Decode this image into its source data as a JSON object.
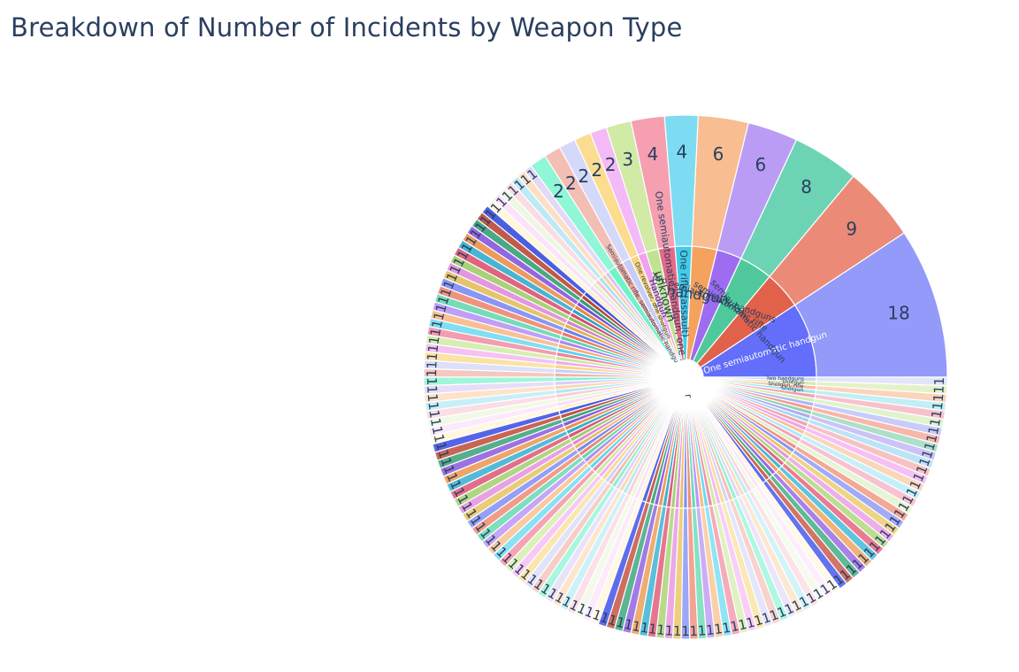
{
  "chart_data": {
    "type": "sunburst",
    "title": "Breakdown of Number of Incidents by Weapon Type",
    "segments": [
      {
        "label": "One semiautomatic handgun",
        "value": 18,
        "color": "#636efa",
        "outer": "#939af9"
      },
      {
        "label": "semiautomatic handgun",
        "value": 9,
        "color": "#e1614a",
        "outer": "#eb8b77"
      },
      {
        "label": "semiautomatic rifle",
        "value": 8,
        "color": "#4fc99b",
        "outer": "#6cd4b4"
      },
      {
        "label": "Two semiautomatic handguns",
        "value": 6,
        "color": "#9d6cf0",
        "outer": "#bb9cf5"
      },
      {
        "label": "handgun",
        "value": 6,
        "color": "#f6a25f",
        "outer": "#f8bd90"
      },
      {
        "label": "One rifle (assault)",
        "value": 4,
        "color": "#43cbe7",
        "outer": "#7ddcf1"
      },
      {
        "label": "One semiautomatic handgun, one revolver",
        "value": 4,
        "color": "#e46a86",
        "outer": "#f59fb1"
      },
      {
        "label": "unknown",
        "value": 3,
        "color": "#bfe38f",
        "outer": "#d1eaa6"
      },
      {
        "label": "Handgun",
        "value": 2,
        "color": "#f4a0f0",
        "outer": "#f4baf7"
      },
      {
        "label": "One revolver, one shotgun",
        "value": 2,
        "color": "#fad37a",
        "outer": "#fbdc91"
      },
      {
        "label": "",
        "value": 2,
        "color": "#c5cdf8",
        "outer": "#d4d9fa"
      },
      {
        "label": "Semiautomatic rifle, semiautomatic handgun",
        "value": 2,
        "color": "#eba89c",
        "outer": "#f3beb4"
      },
      {
        "label": "",
        "value": 2,
        "color": "#6ef4c8",
        "outer": "#8ff6d6"
      },
      {
        "label": "",
        "value": 1,
        "color": "#d6c6f4",
        "outer": "#e4d8f7"
      },
      {
        "label": "",
        "value": 1,
        "color": "#fbcfa4",
        "outer": "#fde0c4"
      },
      {
        "label": "",
        "value": 1,
        "color": "#a6e3f0",
        "outer": "#bdeaf5"
      },
      {
        "label": "",
        "value": 1,
        "color": "#f6c6d2",
        "outer": "#fbdce3"
      },
      {
        "label": "",
        "value": 1,
        "color": "#e4f2d0",
        "outer": "#eef7e3"
      },
      {
        "label": "",
        "value": 1,
        "color": "#f9d6f8",
        "outer": "#fbe4fa"
      },
      {
        "label": "",
        "value": 1,
        "color": "#fdf0c8",
        "outer": "#fef6dd"
      },
      {
        "label": "",
        "value": 1,
        "color": "#3f53d9",
        "outer": "#4a5fe0"
      },
      {
        "label": "",
        "value": 1,
        "color": "#b7483a",
        "outer": "#c05a4b"
      },
      {
        "label": "",
        "value": 1,
        "color": "#379a73",
        "outer": "#4aa884"
      },
      {
        "label": "",
        "value": 1,
        "color": "#7e4ed8",
        "outer": "#9266e0"
      },
      {
        "label": "",
        "value": 1,
        "color": "#e18a45",
        "outer": "#eb9c5d"
      },
      {
        "label": "",
        "value": 1,
        "color": "#2ea4c5",
        "outer": "#48b4d3"
      },
      {
        "label": "",
        "value": 1,
        "color": "#d44c6c",
        "outer": "#e06380"
      },
      {
        "label": "",
        "value": 1,
        "color": "#95c462",
        "outer": "#a8d179"
      },
      {
        "label": "",
        "value": 1,
        "color": "#d67fd2",
        "outer": "#e397e0"
      },
      {
        "label": "",
        "value": 1,
        "color": "#dcb452",
        "outer": "#e6c46c"
      },
      {
        "label": "",
        "value": 1,
        "color": "#6f7ef2",
        "outer": "#8a96f5"
      },
      {
        "label": "",
        "value": 1,
        "color": "#e87a62",
        "outer": "#ef937f"
      },
      {
        "label": "",
        "value": 1,
        "color": "#58d4a9",
        "outer": "#74dcb8"
      },
      {
        "label": "",
        "value": 1,
        "color": "#ab84f3",
        "outer": "#bf9ff6"
      },
      {
        "label": "",
        "value": 1,
        "color": "#f7ad73",
        "outer": "#f9c095"
      },
      {
        "label": "",
        "value": 1,
        "color": "#59d3ee",
        "outer": "#7fdff3"
      },
      {
        "label": "",
        "value": 1,
        "color": "#ee7f98",
        "outer": "#f49cb0"
      },
      {
        "label": "",
        "value": 1,
        "color": "#c8e79a",
        "outer": "#d7eeb2"
      },
      {
        "label": "",
        "value": 1,
        "color": "#f2a9ef",
        "outer": "#f6c2f4"
      },
      {
        "label": "",
        "value": 1,
        "color": "#f8d684",
        "outer": "#fbe3a6"
      },
      {
        "label": "",
        "value": 1,
        "color": "#c9d0f9",
        "outer": "#dce0fb"
      },
      {
        "label": "",
        "value": 1,
        "color": "#f0b3a7",
        "outer": "#f5c8bf"
      },
      {
        "label": "",
        "value": 1,
        "color": "#7df2cd",
        "outer": "#9ff6da"
      },
      {
        "label": "",
        "value": 1,
        "color": "#dcccf6",
        "outer": "#e7ddf9"
      },
      {
        "label": "",
        "value": 1,
        "color": "#fcd6b0",
        "outer": "#fde3c9"
      },
      {
        "label": "",
        "value": 1,
        "color": "#b1e7f3",
        "outer": "#c8eff7"
      },
      {
        "label": "",
        "value": 1,
        "color": "#f8ccd7",
        "outer": "#fbdde5"
      },
      {
        "label": "",
        "value": 1,
        "color": "#e9f5d7",
        "outer": "#f1f9e6"
      },
      {
        "label": "",
        "value": 1,
        "color": "#fbdcfa",
        "outer": "#fde8fc"
      },
      {
        "label": "",
        "value": 1,
        "color": "#fdf2d0",
        "outer": "#fef7e2"
      },
      {
        "label": "",
        "value": 1,
        "color": "#4a5de0",
        "outer": "#5565e8"
      },
      {
        "label": "",
        "value": 1,
        "color": "#c15545",
        "outer": "#c86555"
      },
      {
        "label": "",
        "value": 1,
        "color": "#3fa47c",
        "outer": "#55af8c"
      },
      {
        "label": "",
        "value": 1,
        "color": "#8a5ade",
        "outer": "#9b72e4"
      },
      {
        "label": "",
        "value": 1,
        "color": "#e8944f",
        "outer": "#eda669"
      },
      {
        "label": "",
        "value": 1,
        "color": "#37adcc",
        "outer": "#52bbd8"
      },
      {
        "label": "",
        "value": 1,
        "color": "#da5777",
        "outer": "#e46e88"
      },
      {
        "label": "",
        "value": 1,
        "color": "#a0cc6d",
        "outer": "#b1d683"
      },
      {
        "label": "",
        "value": 1,
        "color": "#dc8ad9",
        "outer": "#e8a1e5"
      },
      {
        "label": "",
        "value": 1,
        "color": "#e2bd5e",
        "outer": "#eacc78"
      },
      {
        "label": "",
        "value": 1,
        "color": "#7987f3",
        "outer": "#93a0f6"
      },
      {
        "label": "",
        "value": 1,
        "color": "#ec8570",
        "outer": "#f19c89"
      },
      {
        "label": "",
        "value": 1,
        "color": "#62d9b0",
        "outer": "#7ddfbd"
      },
      {
        "label": "",
        "value": 1,
        "color": "#b38df4",
        "outer": "#c5a6f7"
      },
      {
        "label": "",
        "value": 1,
        "color": "#f8b47d",
        "outer": "#facb9f"
      },
      {
        "label": "",
        "value": 1,
        "color": "#63d7ef",
        "outer": "#88e2f4"
      },
      {
        "label": "",
        "value": 1,
        "color": "#f088a0",
        "outer": "#f5a4b6"
      },
      {
        "label": "",
        "value": 1,
        "color": "#cde9a3",
        "outer": "#dcf0ba"
      },
      {
        "label": "",
        "value": 1,
        "color": "#f4b1f1",
        "outer": "#f8c8f6"
      },
      {
        "label": "",
        "value": 1,
        "color": "#f9da8e",
        "outer": "#fbe6ad"
      },
      {
        "label": "",
        "value": 1,
        "color": "#cdd3f9",
        "outer": "#e0e3fb"
      },
      {
        "label": "",
        "value": 1,
        "color": "#f2bbb0",
        "outer": "#f7cec6"
      },
      {
        "label": "",
        "value": 1,
        "color": "#88f3d1",
        "outer": "#a8f7de"
      },
      {
        "label": "",
        "value": 1,
        "color": "#e0d2f7",
        "outer": "#eae2fa"
      },
      {
        "label": "",
        "value": 1,
        "color": "#fcdab7",
        "outer": "#fde6ce"
      },
      {
        "label": "",
        "value": 1,
        "color": "#b9eaf4",
        "outer": "#cdf1f8"
      },
      {
        "label": "",
        "value": 1,
        "color": "#f9d1db",
        "outer": "#fce0e7"
      },
      {
        "label": "",
        "value": 1,
        "color": "#edf7de",
        "outer": "#f3faea"
      },
      {
        "label": "",
        "value": 1,
        "color": "#fce0fb",
        "outer": "#fdebfd"
      },
      {
        "label": "",
        "value": 1,
        "color": "#fef4d6",
        "outer": "#fef8e5"
      },
      {
        "label": "",
        "value": 1,
        "color": "#5365e4",
        "outer": "#5d6dec"
      },
      {
        "label": "",
        "value": 1,
        "color": "#c65e4e",
        "outer": "#cd6e5f"
      },
      {
        "label": "",
        "value": 1,
        "color": "#46aa82",
        "outer": "#5bb592"
      },
      {
        "label": "",
        "value": 1,
        "color": "#9163e1",
        "outer": "#a37ae7"
      },
      {
        "label": "",
        "value": 1,
        "color": "#eb9b57",
        "outer": "#efad72"
      },
      {
        "label": "",
        "value": 1,
        "color": "#3eb3d1",
        "outer": "#59c0dc"
      },
      {
        "label": "",
        "value": 1,
        "color": "#de5f7e",
        "outer": "#e7758e"
      },
      {
        "label": "",
        "value": 1,
        "color": "#a6d176",
        "outer": "#b7da8b"
      },
      {
        "label": "",
        "value": 1,
        "color": "#e092dc",
        "outer": "#eba8e8"
      },
      {
        "label": "",
        "value": 1,
        "color": "#e5c266",
        "outer": "#ecd080"
      },
      {
        "label": "",
        "value": 1,
        "color": "#8290f4",
        "outer": "#9ba7f7"
      },
      {
        "label": "",
        "value": 1,
        "color": "#ee8d79",
        "outer": "#f3a391"
      },
      {
        "label": "",
        "value": 1,
        "color": "#6bdcb5",
        "outer": "#85e2c2"
      },
      {
        "label": "",
        "value": 1,
        "color": "#b996f5",
        "outer": "#caadf8"
      },
      {
        "label": "",
        "value": 1,
        "color": "#f9ba86",
        "outer": "#fad0a7"
      },
      {
        "label": "",
        "value": 1,
        "color": "#6ddaf0",
        "outer": "#90e5f5"
      },
      {
        "label": "",
        "value": 1,
        "color": "#f290a6",
        "outer": "#f6abbc"
      },
      {
        "label": "",
        "value": 1,
        "color": "#d1eba9",
        "outer": "#dff2c0"
      },
      {
        "label": "",
        "value": 1,
        "color": "#f5b8f2",
        "outer": "#f9cef7"
      },
      {
        "label": "",
        "value": 1,
        "color": "#fadd96",
        "outer": "#fce8b3"
      },
      {
        "label": "",
        "value": 1,
        "color": "#d1d6fa",
        "outer": "#e3e6fc"
      },
      {
        "label": "",
        "value": 1,
        "color": "#f3c0b6",
        "outer": "#f8d2cb"
      },
      {
        "label": "",
        "value": 1,
        "color": "#91f4d5",
        "outer": "#aff8e1"
      },
      {
        "label": "",
        "value": 1,
        "color": "#e3d6f8",
        "outer": "#ece5fa"
      },
      {
        "label": "",
        "value": 1,
        "color": "#fcddbc",
        "outer": "#fde8d2"
      },
      {
        "label": "",
        "value": 1,
        "color": "#bfecf5",
        "outer": "#d2f3f9"
      },
      {
        "label": "",
        "value": 1,
        "color": "#fad5de",
        "outer": "#fce3e9"
      },
      {
        "label": "",
        "value": 1,
        "color": "#f0f8e2",
        "outer": "#f5fbed"
      },
      {
        "label": "",
        "value": 1,
        "color": "#fde4fc",
        "outer": "#fdeefd"
      },
      {
        "label": "",
        "value": 1,
        "color": "#fef5da",
        "outer": "#fef9e8"
      },
      {
        "label": "",
        "value": 1,
        "color": "#5a6ce8",
        "outer": "#6474ee"
      },
      {
        "label": "",
        "value": 1,
        "color": "#ca6555",
        "outer": "#d17566"
      },
      {
        "label": "",
        "value": 1,
        "color": "#4caf87",
        "outer": "#60ba97"
      },
      {
        "label": "",
        "value": 1,
        "color": "#966be3",
        "outer": "#a881e9"
      },
      {
        "label": "",
        "value": 1,
        "color": "#eda15e",
        "outer": "#f1b278"
      },
      {
        "label": "",
        "value": 1,
        "color": "#44b8d5",
        "outer": "#5fc4df"
      },
      {
        "label": "",
        "value": 1,
        "color": "#e16684",
        "outer": "#e97b93"
      },
      {
        "label": "",
        "value": 1,
        "color": "#abd57c",
        "outer": "#bcde91"
      },
      {
        "label": "",
        "value": 1,
        "color": "#e398df",
        "outer": "#edaeea"
      },
      {
        "label": "",
        "value": 1,
        "color": "#e7c66d",
        "outer": "#eed486"
      },
      {
        "label": "",
        "value": 1,
        "color": "#8896f5",
        "outer": "#a0acf8"
      },
      {
        "label": "",
        "value": 1,
        "color": "#ef937f",
        "outer": "#f4a896"
      },
      {
        "label": "",
        "value": 1,
        "color": "#d9f0c0",
        "outer": "#e6f5d4"
      },
      {
        "label": "",
        "value": 1,
        "color": "#f2a2bb",
        "outer": "#f8c2d2"
      },
      {
        "label": "",
        "value": 1,
        "color": "#aee9f4",
        "outer": "#c6f0f8"
      },
      {
        "label": "",
        "value": 1,
        "color": "#f7c29a",
        "outer": "#fad6bb"
      },
      {
        "label": "",
        "value": 1,
        "color": "#f0a1ee",
        "outer": "#f6c0f4"
      },
      {
        "label": "",
        "value": 1,
        "color": "#f6a4a4",
        "outer": "#f9c2c2"
      },
      {
        "label": "",
        "value": 1,
        "color": "#9fd7f2",
        "outer": "#bde3f6"
      },
      {
        "label": "",
        "value": 1,
        "color": "#b5a8f3",
        "outer": "#cbc2f7"
      },
      {
        "label": "",
        "value": 1,
        "color": "#8fd3b4",
        "outer": "#ace0c8"
      },
      {
        "label": "",
        "value": 1,
        "color": "#f49b8c",
        "outer": "#f8b7ab"
      },
      {
        "label": "",
        "value": 1,
        "color": "#aeb5f7",
        "outer": "#c7ccf9"
      },
      {
        "label": "",
        "value": 1,
        "color": "#d0ecb6",
        "outer": "#e0f3cf"
      },
      {
        "label": "",
        "value": 1,
        "color": "#f2a0b0",
        "outer": "#f7c2cc"
      },
      {
        "label": "",
        "value": 1,
        "color": "#a1e6ef",
        "outer": "#c0eff4"
      },
      {
        "label": "",
        "value": 1,
        "color": "#f7c09c",
        "outer": "#fad4bb"
      },
      {
        "label": "",
        "value": 1,
        "color": "#d8ebb0",
        "outer": "#e5f2c8"
      },
      {
        "label": "",
        "value": 1,
        "color": "#d0d4f5",
        "outer": "#e3e5f9"
      }
    ],
    "inner_labels": [
      "One semiautomatic handgun",
      "semiautomatic handgun",
      "semiautomatic rifle",
      "Two semiautomatic handguns",
      "handgun",
      "One rifle (assault)",
      "One semiautomatic handgun, one revolver",
      "unknown",
      "Handgun",
      "One revolver, one shotgun",
      "Semiautomatic rifle, semiautomatic handgun"
    ],
    "visible_small_labels": [
      "Two handguns",
      "shotgun",
      "Shotgun, rifle",
      "Shotgun"
    ]
  }
}
